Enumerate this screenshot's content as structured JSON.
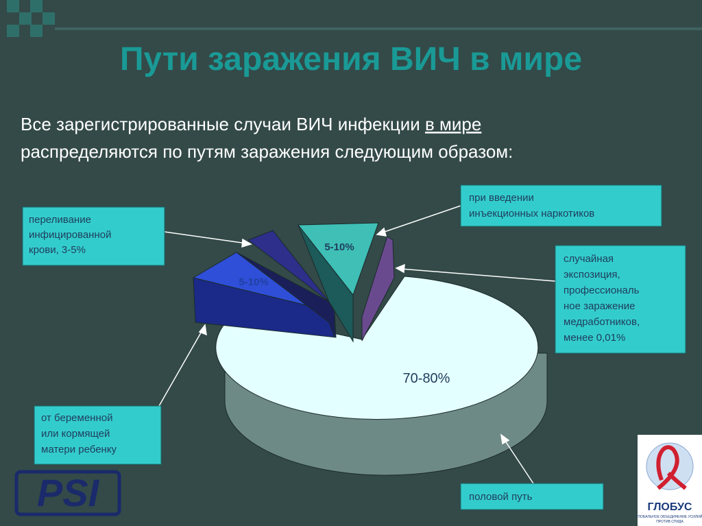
{
  "title": "Пути заражения ВИЧ в мире",
  "intro": {
    "before": "Все зарегистрированные случаи ВИЧ инфекции",
    "link": "в мире",
    "after": "распределяются по путям заражения следующим образом:"
  },
  "slices": [
    {
      "label": "70-80%"
    },
    {
      "label": "5-10%"
    },
    {
      "label": "5-10%"
    }
  ],
  "callouts": [
    {
      "lines": [
        "переливание",
        "инфицированной",
        "крови, 3-5%"
      ]
    },
    {
      "lines": [
        "при введении",
        "инъекционных наркотиков"
      ]
    },
    {
      "lines": [
        "случайная",
        "экспозиция,",
        "профессиональ",
        "ное заражение",
        "медработников,",
        "менее 0,01%"
      ]
    },
    {
      "lines": [
        "от беременной",
        "или кормящей",
        "матери ребенку"
      ]
    },
    {
      "lines": [
        "половой путь"
      ]
    }
  ],
  "logos": {
    "left": "PSI",
    "right": {
      "name": "ГЛОБУС",
      "tagline": [
        "ГЛОБАЛЬНОЕ ОБЪЕДИНЕНИЕ УСИЛИЙ",
        "ПРОТИВ СПИДА"
      ]
    }
  }
}
